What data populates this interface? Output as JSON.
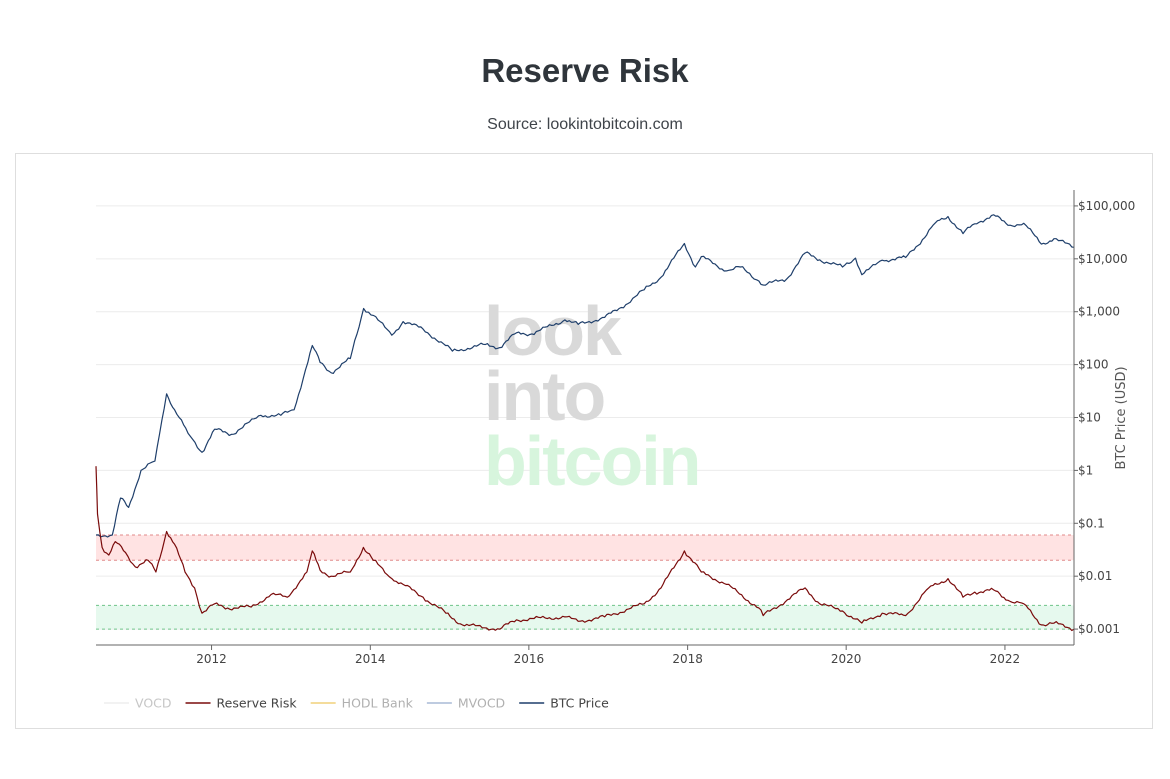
{
  "page": {
    "title": "Reserve Risk",
    "subtitle": "Source: lookintobitcoin.com"
  },
  "watermark": {
    "line1": "look",
    "line2": "into",
    "line3": "bitcoin",
    "color_dark": "#d9d9d9",
    "color_green": "#d7f5dd"
  },
  "chart_data": {
    "type": "line",
    "title": "Reserve Risk",
    "subtitle": "Source: lookintobitcoin.com",
    "x_axis": {
      "type": "date",
      "range": [
        "2010-07-18",
        "2022-11-15"
      ],
      "tick_labels": [
        "2012",
        "2014",
        "2016",
        "2018",
        "2020",
        "2022"
      ],
      "tick_dates": [
        "2012-01-01",
        "2014-01-01",
        "2016-01-01",
        "2018-01-01",
        "2020-01-01",
        "2022-01-01"
      ]
    },
    "y_axis": {
      "scale": "log",
      "label": "BTC Price (USD)",
      "side": "right",
      "range": [
        0.0005,
        200000
      ],
      "tick_values": [
        0.001,
        0.01,
        0.1,
        1,
        10,
        100,
        1000,
        10000,
        100000
      ],
      "tick_labels": [
        "$0.001",
        "$0.01",
        "$0.1",
        "$1",
        "$10",
        "$100",
        "$1,000",
        "$10,000",
        "$100,000"
      ]
    },
    "grid": true,
    "legend_position": "bottom-left",
    "bands": [
      {
        "name": "high risk zone",
        "y_min": 0.02,
        "y_max": 0.06,
        "color": "#ffe3e3",
        "line_color": "#e08a8a"
      },
      {
        "name": "low risk zone",
        "y_min": 0.001,
        "y_max": 0.0028,
        "color": "#e6f9ee",
        "line_color": "#6fc489"
      }
    ],
    "series": [
      {
        "name": "BTC Price",
        "color": "#1f3f6b",
        "points": [
          [
            "2010-07-18",
            0.06
          ],
          [
            "2010-10-01",
            0.06
          ],
          [
            "2010-11-08",
            0.3
          ],
          [
            "2010-12-15",
            0.2
          ],
          [
            "2011-02-10",
            1.0
          ],
          [
            "2011-04-15",
            1.5
          ],
          [
            "2011-06-08",
            28
          ],
          [
            "2011-07-15",
            14
          ],
          [
            "2011-09-15",
            5
          ],
          [
            "2011-11-18",
            2.2
          ],
          [
            "2012-01-15",
            6
          ],
          [
            "2012-04-01",
            4.8
          ],
          [
            "2012-08-15",
            11
          ],
          [
            "2012-11-15",
            11
          ],
          [
            "2013-01-15",
            14
          ],
          [
            "2013-04-09",
            230
          ],
          [
            "2013-05-15",
            110
          ],
          [
            "2013-07-05",
            70
          ],
          [
            "2013-10-01",
            130
          ],
          [
            "2013-12-01",
            1150
          ],
          [
            "2014-01-15",
            850
          ],
          [
            "2014-04-10",
            360
          ],
          [
            "2014-06-01",
            650
          ],
          [
            "2014-09-01",
            470
          ],
          [
            "2015-01-14",
            180
          ],
          [
            "2015-06-15",
            240
          ],
          [
            "2015-08-20",
            210
          ],
          [
            "2015-11-05",
            400
          ],
          [
            "2016-01-15",
            380
          ],
          [
            "2016-06-15",
            700
          ],
          [
            "2016-08-15",
            575
          ],
          [
            "2016-12-15",
            780
          ],
          [
            "2017-03-01",
            1200
          ],
          [
            "2017-06-15",
            2600
          ],
          [
            "2017-09-01",
            4500
          ],
          [
            "2017-12-17",
            19500
          ],
          [
            "2018-02-06",
            7000
          ],
          [
            "2018-03-05",
            11000
          ],
          [
            "2018-06-29",
            5900
          ],
          [
            "2018-09-01",
            7000
          ],
          [
            "2018-11-25",
            3800
          ],
          [
            "2018-12-15",
            3200
          ],
          [
            "2019-04-01",
            4100
          ],
          [
            "2019-06-26",
            12900
          ],
          [
            "2019-09-01",
            9600
          ],
          [
            "2019-12-15",
            7000
          ],
          [
            "2020-02-13",
            10300
          ],
          [
            "2020-03-13",
            5000
          ],
          [
            "2020-06-15",
            9400
          ],
          [
            "2020-10-01",
            10600
          ],
          [
            "2020-12-17",
            23000
          ],
          [
            "2021-02-15",
            48000
          ],
          [
            "2021-04-14",
            63000
          ],
          [
            "2021-06-22",
            30000
          ],
          [
            "2021-08-15",
            46000
          ],
          [
            "2021-11-10",
            68000
          ],
          [
            "2022-01-15",
            43000
          ],
          [
            "2022-03-29",
            47000
          ],
          [
            "2022-06-18",
            19000
          ],
          [
            "2022-08-15",
            24000
          ],
          [
            "2022-11-15",
            16500
          ]
        ]
      },
      {
        "name": "Reserve Risk",
        "color": "#7a0b0b",
        "faded_color": "#a88888",
        "points": [
          [
            "2010-07-18",
            1.2
          ],
          [
            "2010-07-25",
            0.15
          ],
          [
            "2010-08-15",
            0.035
          ],
          [
            "2010-09-15",
            0.025
          ],
          [
            "2010-10-15",
            0.045
          ],
          [
            "2010-12-01",
            0.028
          ],
          [
            "2011-01-15",
            0.015
          ],
          [
            "2011-03-15",
            0.02
          ],
          [
            "2011-04-20",
            0.012
          ],
          [
            "2011-06-08",
            0.07
          ],
          [
            "2011-07-15",
            0.04
          ],
          [
            "2011-09-01",
            0.012
          ],
          [
            "2011-10-15",
            0.006
          ],
          [
            "2011-11-18",
            0.002
          ],
          [
            "2012-01-15",
            0.003
          ],
          [
            "2012-03-15",
            0.0025
          ],
          [
            "2012-07-01",
            0.0026
          ],
          [
            "2012-10-01",
            0.0045
          ],
          [
            "2012-12-15",
            0.004
          ],
          [
            "2013-03-15",
            0.012
          ],
          [
            "2013-04-09",
            0.03
          ],
          [
            "2013-05-15",
            0.013
          ],
          [
            "2013-07-05",
            0.01
          ],
          [
            "2013-10-01",
            0.012
          ],
          [
            "2013-11-30",
            0.035
          ],
          [
            "2014-01-15",
            0.02
          ],
          [
            "2014-04-10",
            0.009
          ],
          [
            "2014-06-01",
            0.007
          ],
          [
            "2014-09-01",
            0.004
          ],
          [
            "2014-12-15",
            0.002
          ],
          [
            "2015-03-01",
            0.0012
          ],
          [
            "2015-08-20",
            0.001
          ],
          [
            "2015-11-05",
            0.0015
          ],
          [
            "2016-06-15",
            0.0017
          ],
          [
            "2016-08-15",
            0.0014
          ],
          [
            "2016-12-15",
            0.0017
          ],
          [
            "2017-06-15",
            0.003
          ],
          [
            "2017-09-01",
            0.006
          ],
          [
            "2017-12-17",
            0.03
          ],
          [
            "2018-03-05",
            0.012
          ],
          [
            "2018-06-29",
            0.007
          ],
          [
            "2018-11-25",
            0.0025
          ],
          [
            "2018-12-15",
            0.0018
          ],
          [
            "2019-06-26",
            0.006
          ],
          [
            "2019-09-01",
            0.003
          ],
          [
            "2019-12-15",
            0.0022
          ],
          [
            "2020-03-13",
            0.0013
          ],
          [
            "2020-06-15",
            0.002
          ],
          [
            "2020-10-01",
            0.0018
          ],
          [
            "2021-01-15",
            0.006
          ],
          [
            "2021-04-14",
            0.009
          ],
          [
            "2021-06-22",
            0.004
          ],
          [
            "2021-08-15",
            0.005
          ],
          [
            "2021-11-10",
            0.0055
          ],
          [
            "2022-01-15",
            0.0035
          ],
          [
            "2022-03-29",
            0.003
          ],
          [
            "2022-06-18",
            0.0012
          ],
          [
            "2022-08-15",
            0.0013
          ],
          [
            "2022-11-15",
            0.001
          ]
        ]
      }
    ],
    "legend": [
      {
        "label": "VOCD",
        "color": "#eeeeee",
        "text_color": "#c6c6c6",
        "visible": false
      },
      {
        "label": "Reserve Risk",
        "color": "#7a0b0b",
        "text_color": "#444444",
        "visible": true
      },
      {
        "label": "HODL Bank",
        "color": "#f0d17a",
        "text_color": "#b0b0b0",
        "visible": false
      },
      {
        "label": "MVOCD",
        "color": "#a9bad6",
        "text_color": "#b0b0b0",
        "visible": false
      },
      {
        "label": "BTC Price",
        "color": "#1f3f6b",
        "text_color": "#444444",
        "visible": true
      }
    ]
  }
}
